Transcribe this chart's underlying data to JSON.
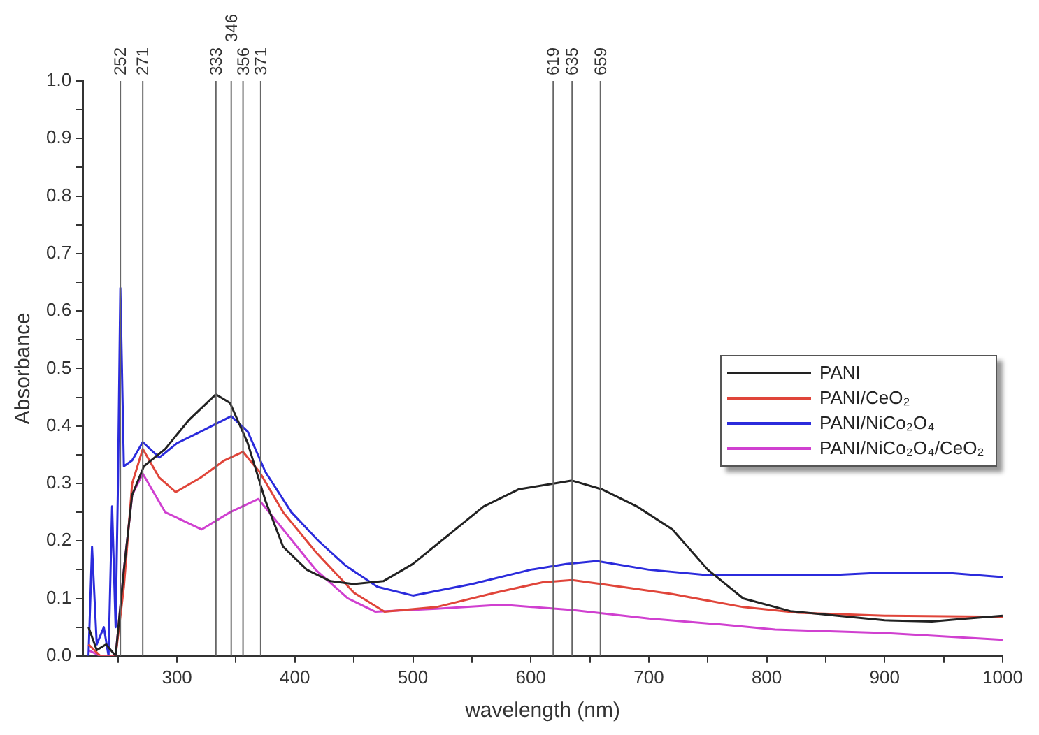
{
  "chart_data": {
    "type": "line",
    "xlabel": "wavelength (nm)",
    "ylabel": "Absorbance",
    "xlim": [
      220,
      1000
    ],
    "ylim": [
      0,
      1
    ],
    "xticks": [
      {
        "value": 250,
        "label": null
      },
      300,
      {
        "value": 350,
        "label": null
      },
      400,
      {
        "value": 450,
        "label": null
      },
      500,
      {
        "value": 550,
        "label": null
      },
      600,
      {
        "value": 650,
        "label": null
      },
      700,
      {
        "value": 750,
        "label": null
      },
      800,
      {
        "value": 850,
        "label": null
      },
      900,
      {
        "value": 950,
        "label": null
      },
      1000
    ],
    "yticks": [
      {
        "value": 0,
        "label": "0.0"
      },
      {
        "value": 0.05,
        "label": null
      },
      0.1,
      {
        "value": 0.15,
        "label": null
      },
      0.2,
      {
        "value": 0.25,
        "label": null
      },
      0.3,
      {
        "value": 0.35,
        "label": null
      },
      0.4,
      {
        "value": 0.45,
        "label": null
      },
      0.5,
      {
        "value": 0.55,
        "label": null
      },
      0.6,
      {
        "value": 0.65,
        "label": null
      },
      0.7,
      {
        "value": 0.75,
        "label": null
      },
      0.8,
      {
        "value": 0.85,
        "label": null
      },
      0.9,
      {
        "value": 0.95,
        "label": null
      },
      {
        "value": 1,
        "label": "1.0"
      }
    ],
    "grid": false,
    "legend": "right",
    "marker": "none",
    "line_style": "solid",
    "ref_lines": [
      {
        "axis": "x",
        "value": 252,
        "label": "252"
      },
      {
        "axis": "x",
        "value": 271,
        "label": "271"
      },
      {
        "axis": "x",
        "value": 333,
        "label": "333"
      },
      {
        "axis": "x",
        "value": 346,
        "label": "346"
      },
      {
        "axis": "x",
        "value": 356,
        "label": "356"
      },
      {
        "axis": "x",
        "value": 371,
        "label": "371"
      },
      {
        "axis": "x",
        "value": 619,
        "label": "619"
      },
      {
        "axis": "x",
        "value": 635,
        "label": "635"
      },
      {
        "axis": "x",
        "value": 659,
        "label": "659"
      }
    ],
    "series": [
      {
        "name": "PANI",
        "color": "#222222",
        "x": [
          225,
          232,
          240,
          248,
          255,
          262,
          272,
          290,
          310,
          333,
          345,
          360,
          375,
          390,
          410,
          430,
          450,
          475,
          500,
          530,
          560,
          590,
          620,
          635,
          660,
          690,
          720,
          750,
          780,
          820,
          860,
          900,
          940,
          970,
          1000
        ],
        "values": [
          0.05,
          0.01,
          0.02,
          0.0,
          0.15,
          0.28,
          0.33,
          0.36,
          0.41,
          0.455,
          0.44,
          0.37,
          0.27,
          0.19,
          0.15,
          0.13,
          0.125,
          0.13,
          0.16,
          0.21,
          0.26,
          0.29,
          0.3,
          0.305,
          0.29,
          0.26,
          0.22,
          0.15,
          0.1,
          0.078,
          0.07,
          0.062,
          0.06,
          0.065,
          0.07
        ]
      },
      {
        "name": "PANI/CeO₂",
        "color": "#e0453a",
        "x": [
          225,
          235,
          248,
          255,
          262,
          271,
          285,
          299,
          320,
          340,
          356,
          370,
          390,
          418,
          450,
          476,
          520,
          570,
          610,
          635,
          660,
          719,
          780,
          827,
          900,
          1000
        ],
        "values": [
          0.02,
          0.0,
          0.0,
          0.12,
          0.3,
          0.36,
          0.31,
          0.285,
          0.31,
          0.34,
          0.355,
          0.32,
          0.25,
          0.18,
          0.11,
          0.077,
          0.085,
          0.11,
          0.128,
          0.132,
          0.125,
          0.108,
          0.085,
          0.075,
          0.07,
          0.068
        ]
      },
      {
        "name": "PANI/NiCo₂O₄",
        "color": "#2b2bdc",
        "x": [
          225,
          228,
          232,
          238,
          242,
          245,
          248,
          250,
          252,
          255,
          262,
          271,
          285,
          300,
          320,
          346,
          360,
          375,
          397,
          420,
          443,
          470,
          500,
          550,
          600,
          630,
          656,
          700,
          752,
          800,
          850,
          900,
          950,
          1000
        ],
        "values": [
          0.0,
          0.19,
          0.02,
          0.05,
          0.0,
          0.26,
          0.05,
          0.3,
          0.64,
          0.33,
          0.34,
          0.372,
          0.345,
          0.37,
          0.39,
          0.417,
          0.39,
          0.32,
          0.25,
          0.2,
          0.157,
          0.12,
          0.105,
          0.125,
          0.15,
          0.16,
          0.165,
          0.15,
          0.14,
          0.14,
          0.14,
          0.145,
          0.145,
          0.137
        ]
      },
      {
        "name": "PANI/NiCo₂O₄/CeO₂",
        "color": "#d040d0",
        "x": [
          225,
          235,
          248,
          255,
          262,
          271,
          290,
          321,
          345,
          369,
          390,
          418,
          445,
          468,
          520,
          576,
          635,
          700,
          760,
          807,
          900,
          1000
        ],
        "values": [
          0.01,
          0.0,
          0.0,
          0.15,
          0.28,
          0.317,
          0.25,
          0.22,
          0.25,
          0.273,
          0.22,
          0.149,
          0.1,
          0.077,
          0.082,
          0.089,
          0.08,
          0.065,
          0.055,
          0.046,
          0.04,
          0.028
        ]
      }
    ]
  }
}
